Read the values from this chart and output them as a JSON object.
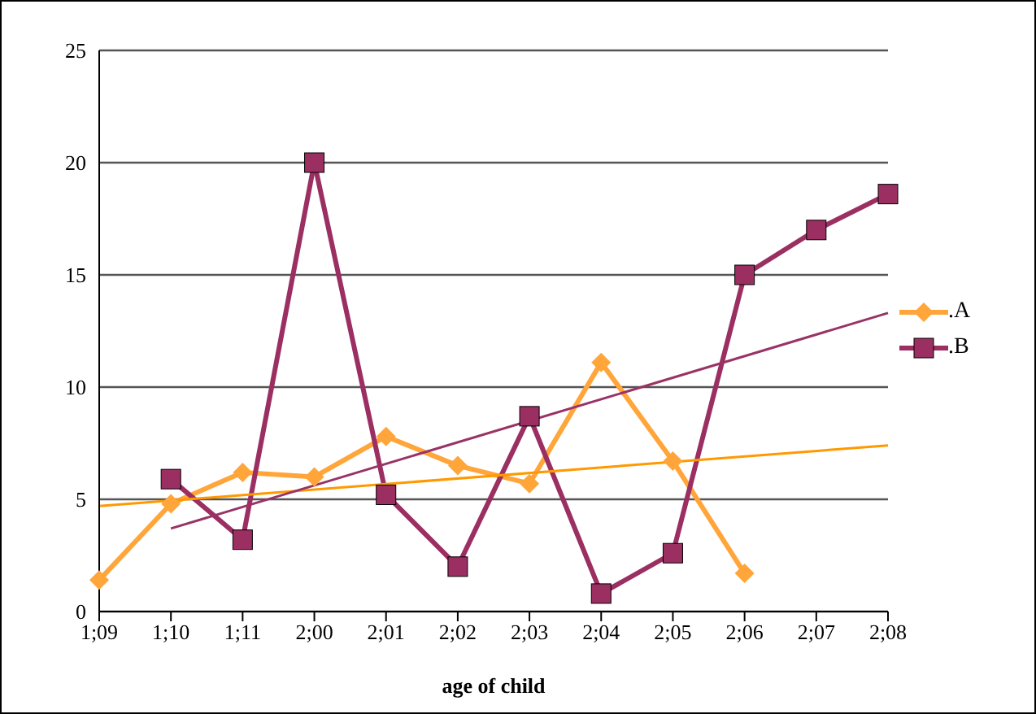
{
  "chart_data": {
    "type": "line",
    "xlabel": "age of child",
    "categories": [
      "1;09",
      "1;10",
      "1;11",
      "2;00",
      "2;01",
      "2;02",
      "2;03",
      "2;04",
      "2;05",
      "2;06",
      "2;07",
      "2;08"
    ],
    "series": [
      {
        "name": ".A",
        "color": "#ffa53a",
        "marker": "diamond",
        "values": [
          1.4,
          4.8,
          6.2,
          6.0,
          7.8,
          6.5,
          5.7,
          11.1,
          6.7,
          1.7,
          null,
          null
        ]
      },
      {
        "name": ".B",
        "color": "#9b2f62",
        "marker": "square",
        "values": [
          null,
          5.9,
          3.2,
          20.0,
          5.2,
          2.0,
          8.7,
          0.8,
          2.6,
          15.0,
          17.0,
          18.6
        ]
      },
      {
        "type": "line",
        "color": "#ff9900",
        "marker": "none",
        "x": [
          "1;09",
          "2;08"
        ],
        "values": [
          4.7,
          7.4
        ]
      },
      {
        "type": "line",
        "color": "#993366",
        "marker": "none",
        "x": [
          "1;10",
          "2;08"
        ],
        "values": [
          3.7,
          13.3
        ]
      }
    ],
    "ylim": [
      0,
      25
    ],
    "yticks": [
      0,
      5,
      10,
      15,
      20,
      25
    ],
    "grid": "y",
    "legend": "right"
  }
}
